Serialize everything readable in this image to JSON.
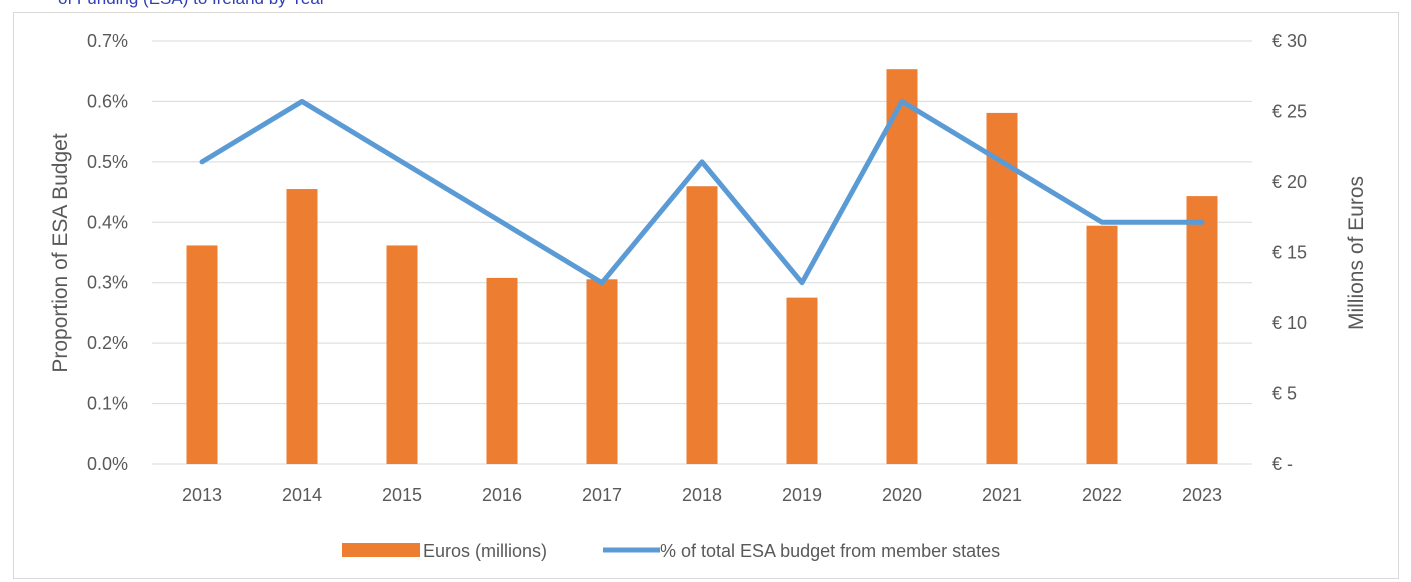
{
  "header_fragment": "of Funding (ESA) to Ireland by Year",
  "colors": {
    "bars": "#ed7d31",
    "line": "#5b9bd5",
    "grid": "#d9d9d9",
    "text": "#595959"
  },
  "chart_data": {
    "type": "bar",
    "categories": [
      "2013",
      "2014",
      "2015",
      "2016",
      "2017",
      "2018",
      "2019",
      "2020",
      "2021",
      "2022",
      "2023"
    ],
    "series": [
      {
        "name": "Euros (millions)",
        "type": "bar",
        "axis": "right",
        "values": [
          15.5,
          19.5,
          15.5,
          13.2,
          13.1,
          19.7,
          11.8,
          28.0,
          24.9,
          16.9,
          19.0
        ]
      },
      {
        "name": "% of total ESA budget from member states",
        "type": "line",
        "axis": "left",
        "values": [
          0.005,
          0.006,
          0.005,
          0.004,
          0.003,
          0.005,
          0.003,
          0.006,
          0.005,
          0.004,
          0.004
        ]
      }
    ],
    "y_left": {
      "label": "Proportion of ESA Budget",
      "ylim": [
        0,
        0.007
      ],
      "tick_labels": [
        "0.0%",
        "0.1%",
        "0.2%",
        "0.3%",
        "0.4%",
        "0.5%",
        "0.6%",
        "0.7%"
      ]
    },
    "y_right": {
      "label": "Millions of Euros",
      "ylim": [
        0,
        30
      ],
      "tick_labels": [
        "€ -",
        "€ 5",
        "€ 10",
        "€ 15",
        "€ 20",
        "€ 25",
        "€ 30"
      ]
    },
    "grid": true,
    "legend_position": "bottom"
  }
}
